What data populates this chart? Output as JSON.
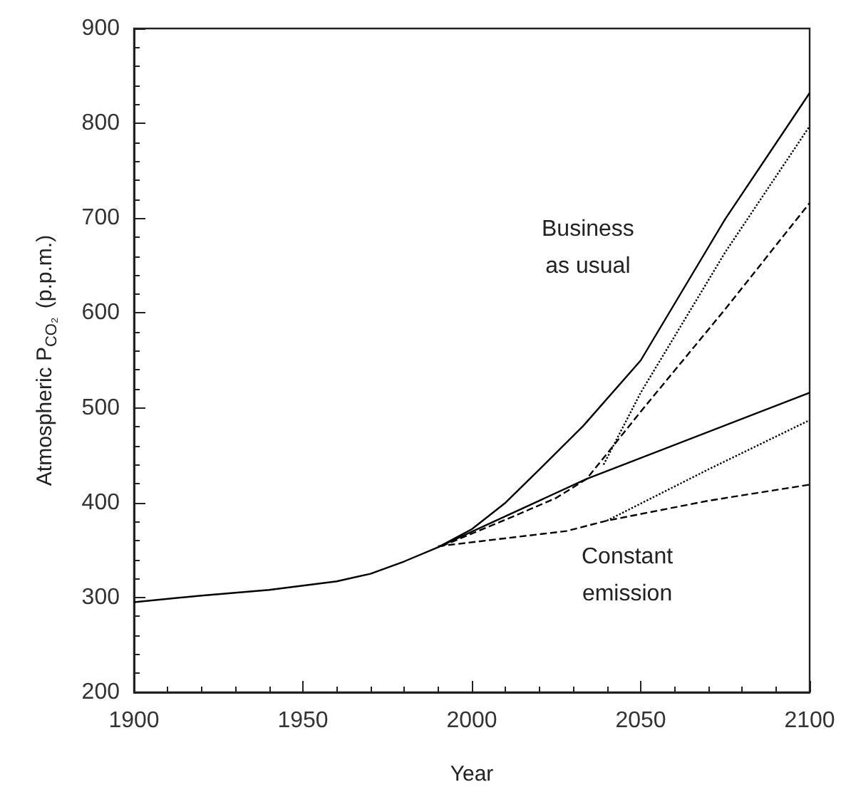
{
  "chart_data": {
    "type": "line",
    "xlabel": "Year",
    "ylabel": "Atmospheric P$_{CO₂}$ (p.p.m.)",
    "xlim": [
      1900,
      2100
    ],
    "xticks": [
      1900,
      1950,
      2000,
      2050,
      2100
    ],
    "ylim": [
      200,
      900
    ],
    "yticks": [
      200,
      300,
      400,
      500,
      600,
      700,
      800,
      900
    ],
    "grid": false,
    "marker": "none",
    "annotations": [
      "Business\nas usual",
      "Constant\nemission"
    ],
    "series": [
      {
        "color": "#000000",
        "line_style": "solid",
        "x": [
          1900,
          1920,
          1940,
          1960,
          1970,
          1980,
          1990,
          2000,
          2010,
          2020,
          2033,
          2050,
          2075,
          2100
        ],
        "values": [
          295,
          302,
          308,
          317,
          325,
          338,
          353,
          372,
          400,
          435,
          481,
          550,
          699,
          832
        ]
      },
      {
        "color": "#000000",
        "line_style": "dotted",
        "x": [
          2039,
          2050,
          2075,
          2100
        ],
        "values": [
          440,
          516,
          664,
          797
        ]
      },
      {
        "color": "#000000",
        "line_style": "dashed",
        "x": [
          1991,
          2012,
          2025,
          2034,
          2050,
          2075,
          2100
        ],
        "values": [
          354,
          385,
          405,
          425,
          496,
          604,
          716
        ]
      },
      {
        "color": "#000000",
        "line_style": "solid",
        "x": [
          1990,
          2034,
          2100
        ],
        "values": [
          353,
          425,
          516
        ]
      },
      {
        "color": "#000000",
        "line_style": "dotted",
        "x": [
          2040,
          2070,
          2100
        ],
        "values": [
          381,
          435,
          487
        ]
      },
      {
        "color": "#000000",
        "line_style": "dashed",
        "x": [
          1990,
          2028,
          2040,
          2070,
          2100
        ],
        "values": [
          354,
          370,
          381,
          402,
          419
        ]
      }
    ]
  }
}
